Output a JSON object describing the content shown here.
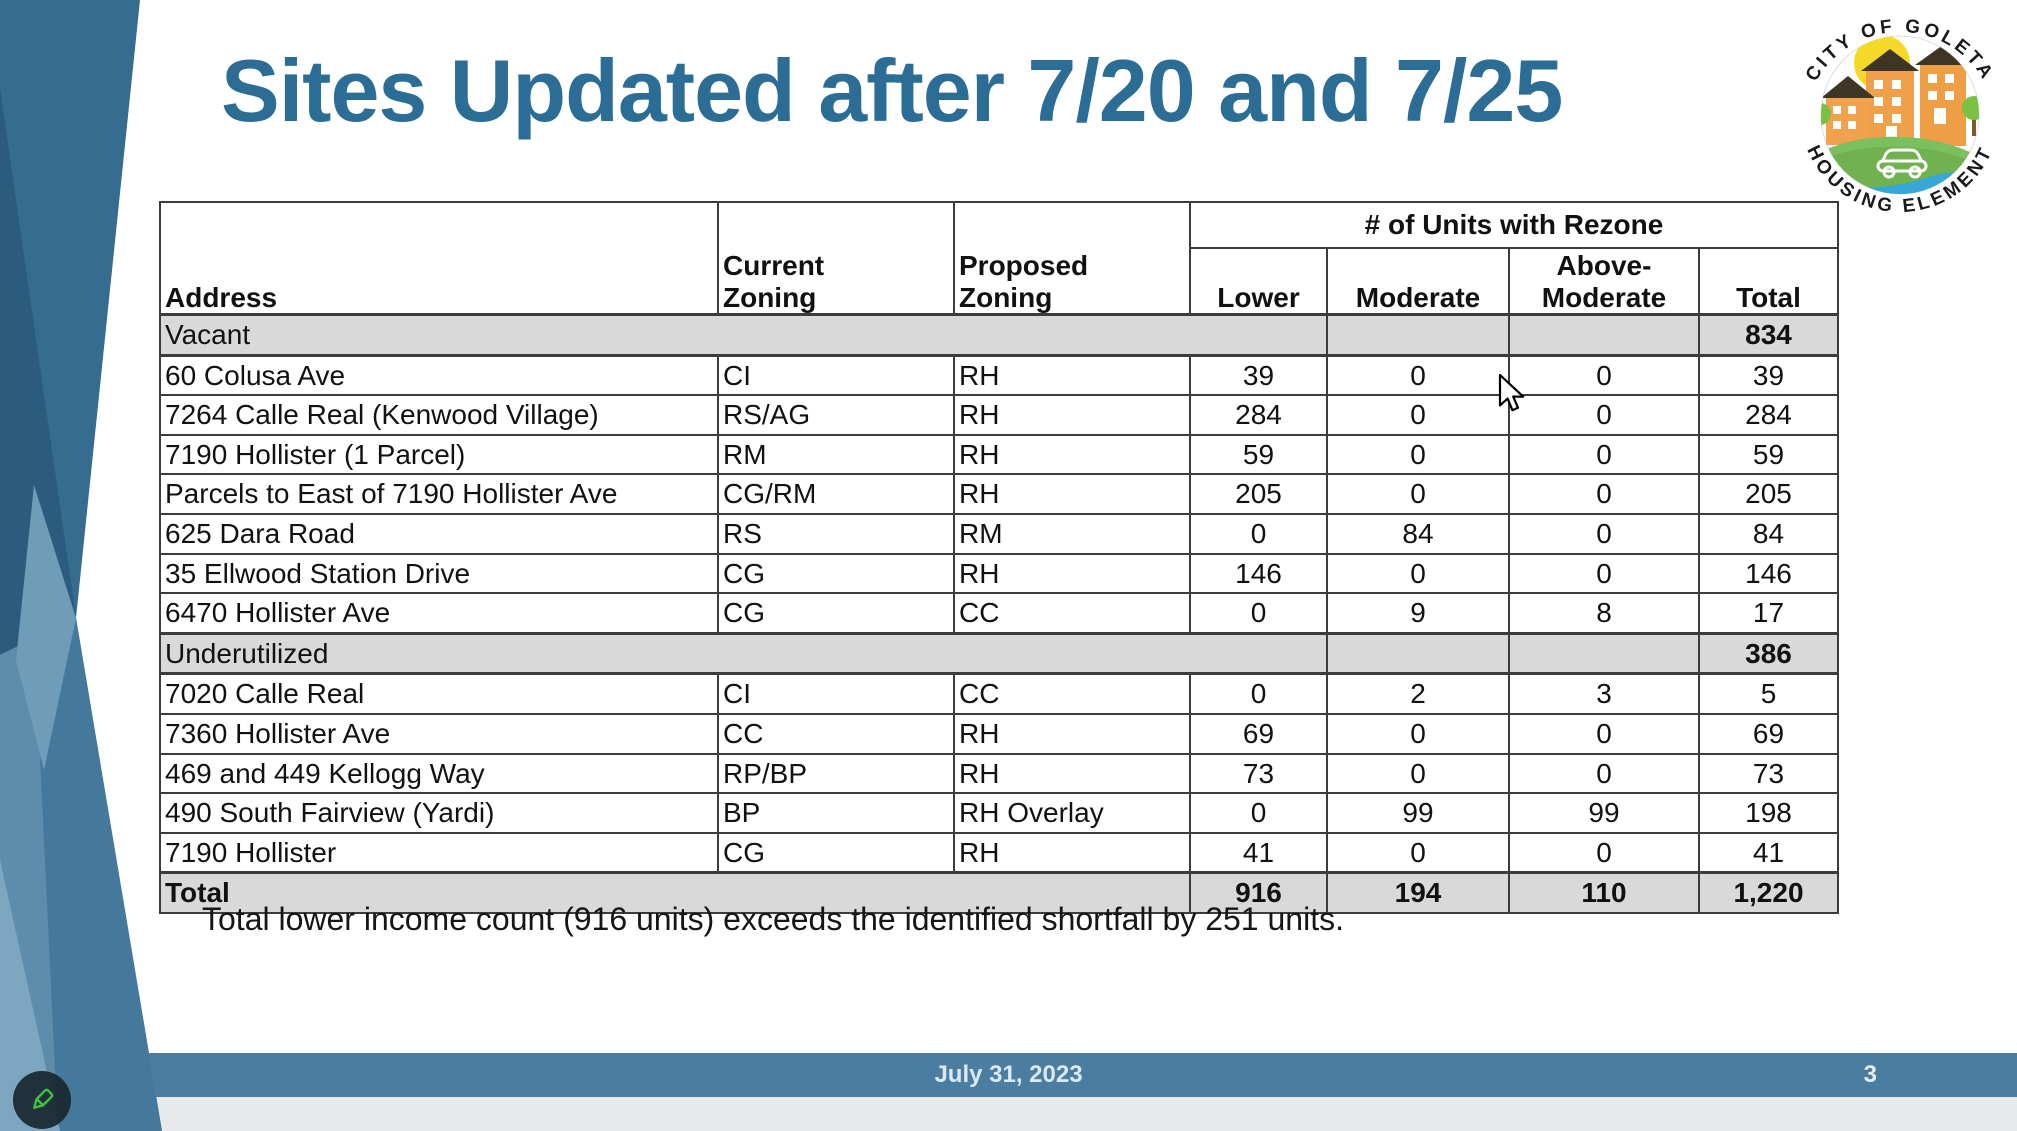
{
  "slide": {
    "title": "Sites Updated after 7/20 and 7/25",
    "note": "Total lower income count (916 units) exceeds the identified shortfall by 251 units.",
    "footer": {
      "date": "July 31, 2023",
      "page": "3"
    }
  },
  "logo": {
    "top_text": "CITY OF GOLETA",
    "bottom_text": "HOUSING ELEMENT"
  },
  "icons": {
    "annotate": "pencil-icon",
    "pointer": "arrow-cursor-icon"
  },
  "colors": {
    "title_blue": "#2b6d95",
    "footer_bar": "#4a7da0",
    "band_gray": "#d9d9d9",
    "art_dark": "#2b5c7d",
    "art_medium": "#356c90",
    "art_light": "#7da6c0",
    "pencil_green": "#3ec43e"
  },
  "table": {
    "headers": {
      "address": "Address",
      "current": "Current\nZoning",
      "proposed": "Proposed\nZoning",
      "group": "# of Units with Rezone",
      "lower": "Lower",
      "moderate": "Moderate",
      "above": "Above-\nModerate",
      "total": "Total"
    },
    "rows": [
      {
        "type": "band",
        "label": "Vacant",
        "moderate": "",
        "above": "",
        "total": "834"
      },
      {
        "type": "data",
        "address": "60 Colusa Ave",
        "current": "CI",
        "proposed": "RH",
        "lower": "39",
        "moderate": "0",
        "above": "0",
        "total": "39"
      },
      {
        "type": "data",
        "address": "7264 Calle Real (Kenwood Village)",
        "current": "RS/AG",
        "proposed": "RH",
        "lower": "284",
        "moderate": "0",
        "above": "0",
        "total": "284"
      },
      {
        "type": "data",
        "address": "7190 Hollister (1 Parcel)",
        "current": "RM",
        "proposed": "RH",
        "lower": "59",
        "moderate": "0",
        "above": "0",
        "total": "59"
      },
      {
        "type": "data",
        "address": "Parcels to East of 7190 Hollister Ave",
        "current": "CG/RM",
        "proposed": "RH",
        "lower": "205",
        "moderate": "0",
        "above": "0",
        "total": "205"
      },
      {
        "type": "data",
        "address": "625 Dara Road",
        "current": "RS",
        "proposed": "RM",
        "lower": "0",
        "moderate": "84",
        "above": "0",
        "total": "84"
      },
      {
        "type": "data",
        "address": "35 Ellwood Station Drive",
        "current": "CG",
        "proposed": "RH",
        "lower": "146",
        "moderate": "0",
        "above": "0",
        "total": "146"
      },
      {
        "type": "data",
        "address": "6470 Hollister Ave",
        "current": "CG",
        "proposed": "CC",
        "lower": "0",
        "moderate": "9",
        "above": "8",
        "total": "17"
      },
      {
        "type": "band",
        "label": "Underutilized",
        "moderate": "",
        "above": "",
        "total": "386"
      },
      {
        "type": "data",
        "address": "7020 Calle Real",
        "current": "CI",
        "proposed": "CC",
        "lower": "0",
        "moderate": "2",
        "above": "3",
        "total": "5"
      },
      {
        "type": "data",
        "address": "7360 Hollister Ave",
        "current": "CC",
        "proposed": "RH",
        "lower": "69",
        "moderate": "0",
        "above": "0",
        "total": "69"
      },
      {
        "type": "data",
        "address": "469 and 449 Kellogg Way",
        "current": "RP/BP",
        "proposed": "RH",
        "lower": "73",
        "moderate": "0",
        "above": "0",
        "total": "73"
      },
      {
        "type": "data",
        "address": "490 South Fairview (Yardi)",
        "current": "BP",
        "proposed": "RH Overlay",
        "lower": "0",
        "moderate": "99",
        "above": "99",
        "total": "198"
      },
      {
        "type": "data",
        "address": "7190 Hollister",
        "current": "CG",
        "proposed": "RH",
        "lower": "41",
        "moderate": "0",
        "above": "0",
        "total": "41"
      },
      {
        "type": "total",
        "label": "Total",
        "lower": "916",
        "moderate": "194",
        "above": "110",
        "total": "1,220"
      }
    ]
  }
}
